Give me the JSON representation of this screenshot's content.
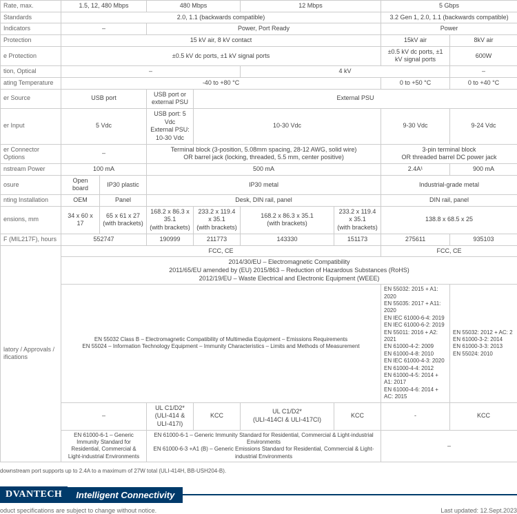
{
  "rows": {
    "rate": {
      "label": "Rate, max.",
      "c1": "1.5, 12, 480 Mbps",
      "c2": "480 Mbps",
      "c3": "12 Mbps",
      "c4": "5 Gbps"
    },
    "standards": {
      "label": "Standards",
      "c1": "2.0, 1.1 (backwards compatible)",
      "c2": "3.2 Gen 1, 2.0, 1.1 (backwards compatible)"
    },
    "indicators": {
      "label": "Indicators",
      "c1": "–",
      "c2": "Power, Port Ready",
      "c3": "Power"
    },
    "protection": {
      "label": "Protection",
      "c1": "15 kV air, 8 kV contact",
      "c2": "15kV air",
      "c3": "8kV air"
    },
    "eprotection": {
      "label": "e Protection",
      "c1": "±0.5 kV dc ports, ±1 kV signal ports",
      "c2": "±0.5 kV dc ports, ±1 kV signal ports",
      "c3": "600W"
    },
    "optical": {
      "label": "tion, Optical",
      "c1": "–",
      "c2": "4 kV",
      "c3": "–"
    },
    "temp": {
      "label": "ating Temperature",
      "c1": "-40 to +80 °C",
      "c2": "0 to +50 °C",
      "c3": "0 to +40 °C"
    },
    "psource": {
      "label": "er Source",
      "c1": "USB port",
      "c2": "USB port or external PSU",
      "c3": "External PSU"
    },
    "pinput": {
      "label": "er Input",
      "c1": "5 Vdc",
      "c2": "USB port: 5 Vdc\nExternal PSU: 10-30 Vdc",
      "c3": "10-30 Vdc",
      "c4": "9-30 Vdc",
      "c5": "9-24 Vdc"
    },
    "pconn": {
      "label": "er Connector Options",
      "c1": "–",
      "c2": "Terminal block (3-position, 5.08mm spacing, 28-12 AWG, solid wire)\nOR barrel jack (locking, threaded, 5.5 mm, center positive)",
      "c3": "3-pin terminal block\nOR threaded barrel DC power jack"
    },
    "dpower": {
      "label": "nstream Power",
      "c1": "100 mA",
      "c2": "500 mA",
      "c3": "2.4A¹",
      "c4": "900 mA"
    },
    "osure": {
      "label": "osure",
      "c1": "Open board",
      "c2": "IP30 plastic",
      "c3": "IP30 metal",
      "c4": "Industrial-grade metal"
    },
    "install": {
      "label": "nting Installation",
      "c1": "OEM",
      "c2": "Panel",
      "c3": "Desk, DIN rail, panel",
      "c4": "DIN rail, panel"
    },
    "dims": {
      "label": "ensions, mm",
      "c1": "34 x 60 x 17",
      "c2": "65 x 61 x 27\n(with brackets)",
      "c3": "168.2 x 86.3 x 35.1\n(with brackets)",
      "c4": "233.2 x 119.4 x 35.1\n(with brackets)",
      "c5": "168.2 x 86.3 x 35.1\n(with brackets)",
      "c6": "233.2 x 119.4 x 35.1\n(with brackets)",
      "c7": "138.8 x 68.5 x 25"
    },
    "mtbf": {
      "label": "F (MIL217F), hours",
      "c1": "552747",
      "c2": "190999",
      "c3": "211773",
      "c4": "143330",
      "c5": "151173",
      "c6": "275611",
      "c7": "935103"
    },
    "reg": {
      "label": "latory / Approvals / ifications",
      "fcc1": "FCC, CE",
      "fcc2": "FCC, CE",
      "eu": "2014/30/EU – Electromagnetic Compatibility\n2011/65/EU amended by (EU) 2015/863 – Reduction of Hazardous Substances (RoHS)\n2012/19/EU – Waste Electrical and Electronic Equipment (WEEE)",
      "en_left": "EN 55032 Class B – Electromagnetic Compatibility of Multimedia Equipment – Emissions Requirements\nEN 55024 – Information Technology Equipment – Immunity Characteristics – Limits and Methods of Measurement",
      "en_mid": "EN 55032: 2015 + A1: 2020\nEN 55035: 2017 + A11: 2020\nEN IEC 61000-6-4: 2019\nEN IEC 61000-6-2: 2019\nEN 55011: 2016 + A2: 2021\nEN 61000-4-2: 2009\nEN 61000-4-8: 2010\nEN IEC 61000-4-3: 2020\nEN 61000-4-4: 2012\nEN 61000-4-5: 2014 + A1: 2017\nEN 61000-4-6: 2014 + AC: 2015",
      "en_right": "EN 55032: 2012 + AC: 2\nEN 61000-3-2: 2014\nEN 61000-3-3: 2013\nEN 55024: 2010",
      "kcc_r1c1": "–",
      "kcc_r1c2": "UL C1/D2*\n(ULI-414 & ULI-417I)",
      "kcc_r1c3": "KCC",
      "kcc_r1c4": "UL C1/D2*\n(ULI-414CI & ULI-417CI)",
      "kcc_r1c5": "KCC",
      "kcc_r1c6": "-",
      "kcc_r1c7": "KCC",
      "bot_left": "EN 61000-6-1 – Generic Immunity Standard for Residential, Commercial & Light-industrial Environments",
      "bot_mid": "EN 61000-6-1 – Generic Immunity Standard for Residential, Commercial & Light-industrial Environments\nEN 61000-6-3 +A1 (B) – Generic Emissions Standard for Residential, Commercial & Light-industrial Environments",
      "bot_right": "–"
    }
  },
  "note": "downstream port supports up to 2.4A to a maximum of 27W total (ULI-414H, BB-USH204-B).",
  "footer": {
    "logo": "DVANTECH",
    "tagline": "Intelligent Connectivity",
    "disclaimer": "oduct specifications are subject to change without notice.",
    "updated": "Last updated: 12.Sept.2023"
  }
}
